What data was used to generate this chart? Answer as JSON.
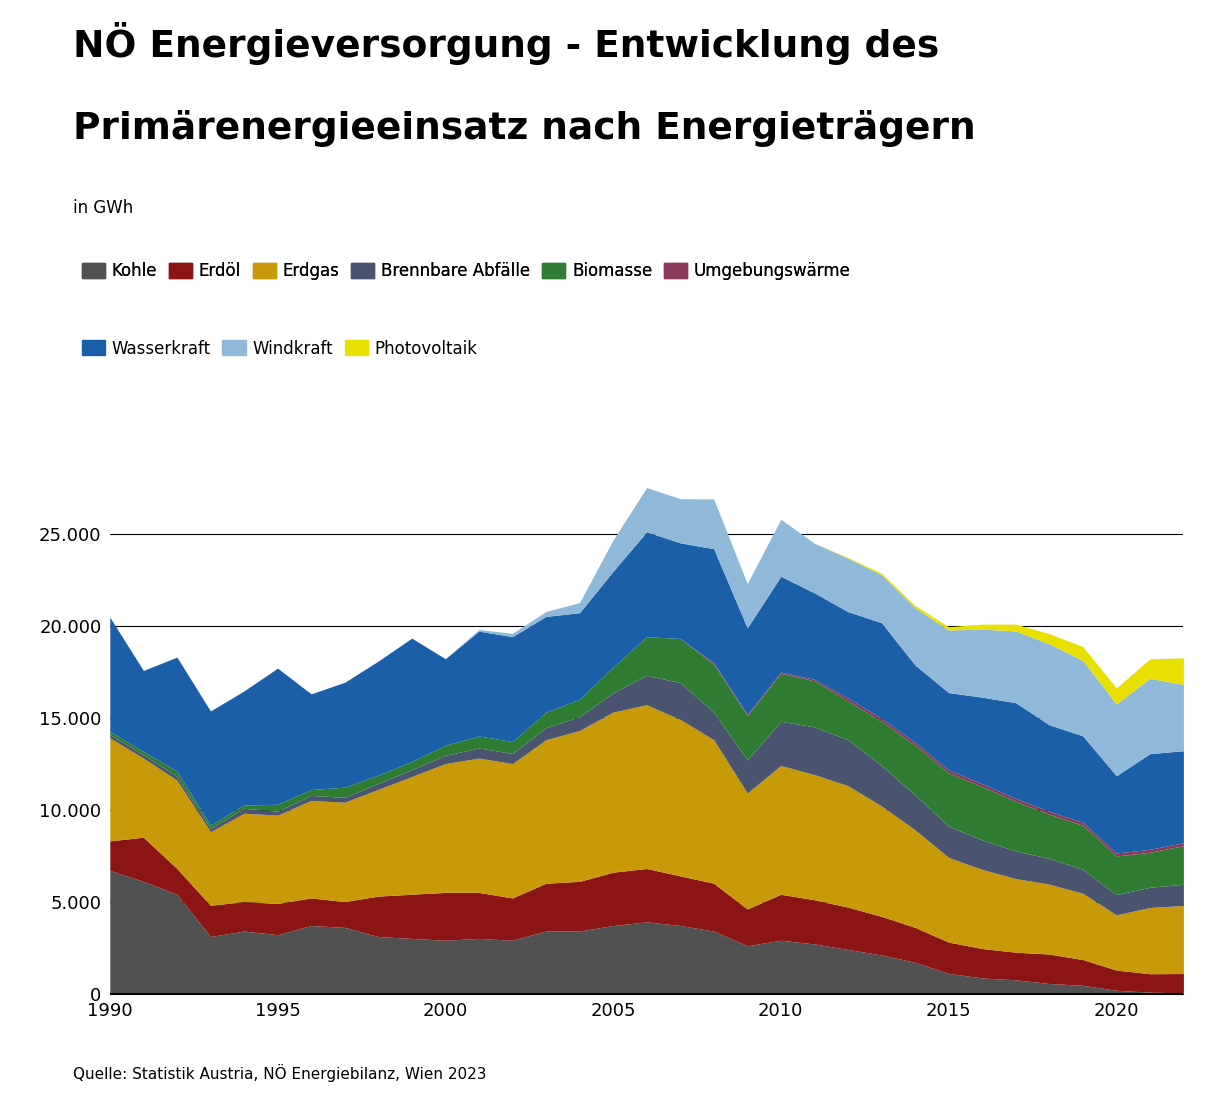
{
  "title_line1": "NÖ Energieversorgung - Entwicklung des",
  "title_line2": "Primärenergieeinsatz nach Energieträgern",
  "subtitle": "in GWh",
  "source": "Quelle: Statistik Austria, NÖ Energiebilanz, Wien 2023",
  "years": [
    1990,
    1991,
    1992,
    1993,
    1994,
    1995,
    1996,
    1997,
    1998,
    1999,
    2000,
    2001,
    2002,
    2003,
    2004,
    2005,
    2006,
    2007,
    2008,
    2009,
    2010,
    2011,
    2012,
    2013,
    2014,
    2015,
    2016,
    2017,
    2018,
    2019,
    2020,
    2021,
    2022
  ],
  "series": {
    "Kohle": [
      6700,
      6100,
      5400,
      3100,
      3400,
      3200,
      3700,
      3600,
      3100,
      3000,
      2900,
      3000,
      2900,
      3400,
      3400,
      3700,
      3900,
      3700,
      3400,
      2600,
      2900,
      2700,
      2400,
      2100,
      1700,
      1100,
      850,
      750,
      550,
      450,
      180,
      80,
      40
    ],
    "Erdöl": [
      1600,
      2400,
      1400,
      1700,
      1600,
      1700,
      1500,
      1400,
      2200,
      2400,
      2600,
      2500,
      2300,
      2600,
      2700,
      2900,
      2900,
      2700,
      2600,
      2000,
      2500,
      2400,
      2300,
      2100,
      1900,
      1700,
      1600,
      1500,
      1600,
      1400,
      1100,
      1000,
      1050
    ],
    "Erdgas": [
      5600,
      4300,
      4800,
      4000,
      4800,
      4800,
      5300,
      5400,
      5800,
      6400,
      7000,
      7300,
      7300,
      7800,
      8200,
      8700,
      8900,
      8500,
      7800,
      6300,
      7000,
      6800,
      6600,
      6000,
      5300,
      4600,
      4300,
      4000,
      3800,
      3600,
      3000,
      3600,
      3700
    ],
    "Brennbare Abfälle": [
      180,
      180,
      220,
      180,
      270,
      220,
      270,
      270,
      320,
      370,
      450,
      550,
      550,
      650,
      750,
      1050,
      1600,
      2000,
      1500,
      1800,
      2400,
      2600,
      2500,
      2200,
      1900,
      1700,
      1600,
      1500,
      1400,
      1300,
      1100,
      1100,
      1150
    ],
    "Biomasse": [
      180,
      180,
      270,
      180,
      180,
      370,
      320,
      550,
      450,
      450,
      550,
      650,
      650,
      850,
      950,
      1400,
      2100,
      2400,
      2600,
      2400,
      2600,
      2500,
      2100,
      2400,
      2700,
      2900,
      2900,
      2700,
      2400,
      2400,
      2100,
      1900,
      2100
    ],
    "Umgebungswaerme": [
      0,
      0,
      0,
      0,
      0,
      0,
      0,
      0,
      0,
      0,
      0,
      0,
      0,
      0,
      0,
      0,
      0,
      0,
      80,
      80,
      80,
      80,
      160,
      160,
      160,
      160,
      160,
      160,
      160,
      160,
      160,
      160,
      160
    ],
    "Wasserkraft": [
      6200,
      4400,
      6200,
      6200,
      6200,
      7400,
      5200,
      5700,
      6200,
      6700,
      4700,
      5700,
      5700,
      5200,
      4700,
      5200,
      5700,
      5200,
      6200,
      4700,
      5200,
      4700,
      4700,
      5200,
      4200,
      4200,
      4700,
      5200,
      4700,
      4700,
      4200,
      5200,
      5000
    ],
    "Windkraft": [
      0,
      0,
      0,
      0,
      0,
      0,
      0,
      0,
      0,
      0,
      0,
      90,
      180,
      270,
      550,
      1700,
      2400,
      2400,
      2700,
      2400,
      3100,
      2700,
      2900,
      2600,
      3100,
      3400,
      3700,
      3900,
      4400,
      4100,
      3900,
      4100,
      3600
    ],
    "Photovoltaik": [
      0,
      0,
      0,
      0,
      0,
      0,
      0,
      0,
      0,
      0,
      0,
      0,
      0,
      0,
      0,
      0,
      0,
      0,
      0,
      0,
      0,
      0,
      40,
      90,
      130,
      180,
      270,
      370,
      550,
      750,
      870,
      1050,
      1450
    ]
  },
  "colors": {
    "Kohle": "#515151",
    "Erdöl": "#8b1515",
    "Erdgas": "#c89a0a",
    "Brennbare Abfälle": "#4a5470",
    "Biomasse": "#2e7d32",
    "Umgebungswaerme": "#8b3a5c",
    "Wasserkraft": "#1a5fa8",
    "Windkraft": "#90b8d8",
    "Photovoltaik": "#e8e000"
  },
  "legend_labels": {
    "Kohle": "Kohle",
    "Erdöl": "Erdöl",
    "Erdgas": "Erdgas",
    "Brennbare Abfälle": "Brennbare Abfälle",
    "Biomasse": "Biomasse",
    "Umgebungswaerme": "Umgebungswärme",
    "Wasserkraft": "Wasserkraft",
    "Windkraft": "Windkraft",
    "Photovoltaik": "Photovoltaik"
  },
  "ylim": [
    0,
    30000
  ],
  "yticks": [
    0,
    5000,
    10000,
    15000,
    20000,
    25000
  ],
  "ytick_labels": [
    "0",
    "5.000",
    "10.000",
    "15.000",
    "20.000",
    "25.000"
  ],
  "xticks": [
    1990,
    1995,
    2000,
    2005,
    2010,
    2015,
    2020
  ],
  "background_color": "#ffffff"
}
